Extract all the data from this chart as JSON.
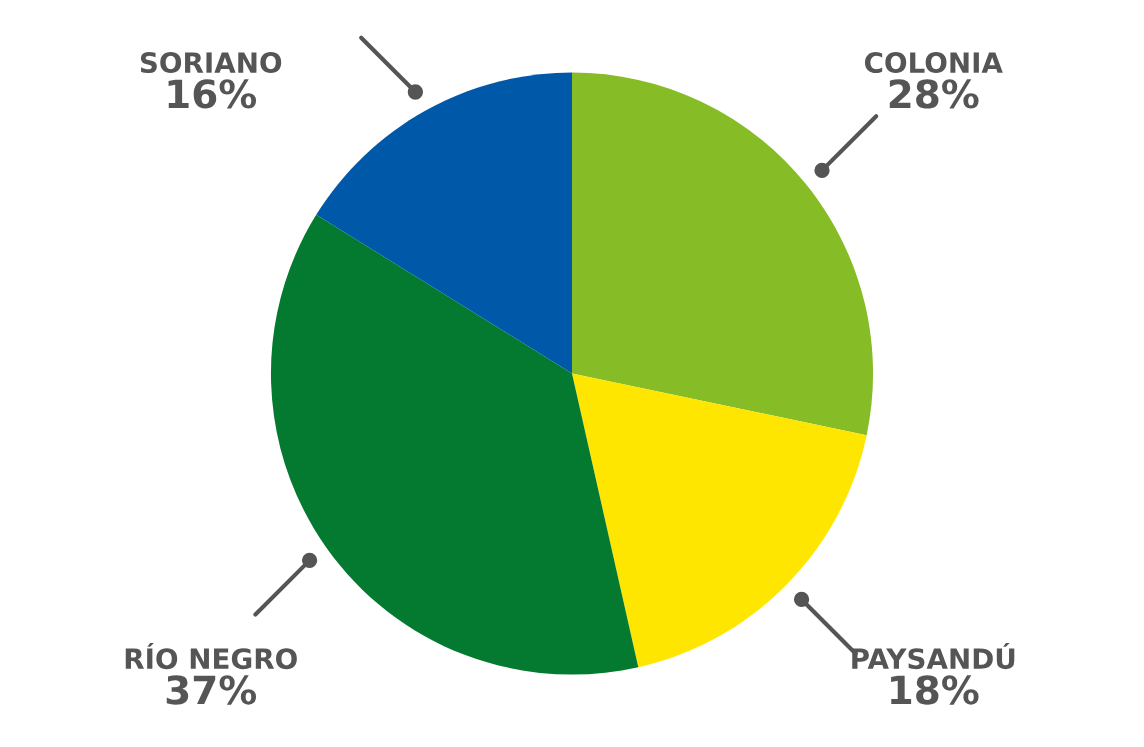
{
  "chart_data": {
    "type": "pie",
    "categories": [
      "COLONIA",
      "PAYSANDÚ",
      "RÍO NEGRO",
      "SORIANO"
    ],
    "values": [
      28,
      18,
      37,
      16
    ],
    "value_labels": [
      "28%",
      "18%",
      "37%",
      "16%"
    ],
    "colors": [
      "#86bc25",
      "#ffe600",
      "#047a30",
      "#0059a8"
    ]
  }
}
